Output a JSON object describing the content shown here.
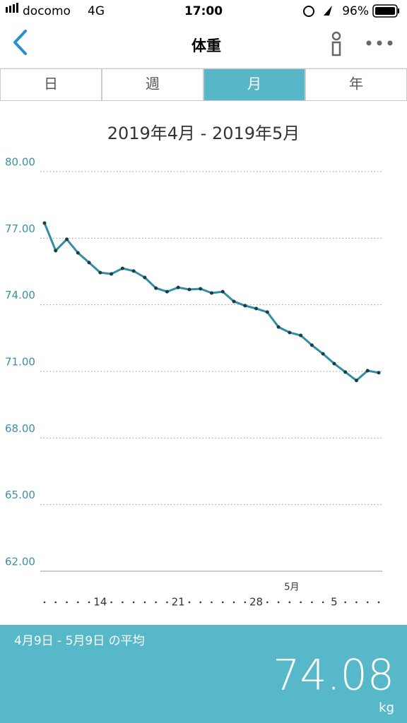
{
  "status_bar": {
    "carrier": "docomo",
    "network": "4G",
    "time": "17:00",
    "battery": "96%"
  },
  "nav": {
    "title": "体重"
  },
  "tabs": [
    "日",
    "週",
    "月",
    "年"
  ],
  "chart_data": {
    "type": "line",
    "title": "2019年4月 - 2019年5月",
    "categories": [
      null,
      null,
      null,
      null,
      null,
      "14",
      null,
      null,
      null,
      null,
      null,
      null,
      "21",
      null,
      null,
      null,
      null,
      null,
      null,
      "28",
      null,
      null,
      null,
      null,
      null,
      null,
      "5",
      null,
      null,
      null,
      null
    ],
    "month_marker": "5月",
    "series": [
      {
        "name": "体重",
        "color": "#2f8ea3",
        "values": [
          77.68,
          76.44,
          76.95,
          76.34,
          75.9,
          75.45,
          75.39,
          75.64,
          75.52,
          75.23,
          74.75,
          74.59,
          74.78,
          74.69,
          74.72,
          74.53,
          74.59,
          74.15,
          73.96,
          73.83,
          73.67,
          73.0,
          72.75,
          72.62,
          72.18,
          71.79,
          71.35,
          70.97,
          70.59,
          71.03,
          70.94
        ]
      }
    ],
    "ylim": [
      62,
      80
    ],
    "yticks": [
      {
        "value": 62,
        "label": "62.00"
      },
      {
        "value": 65,
        "label": "65.00"
      },
      {
        "value": 68,
        "label": "68.00"
      },
      {
        "value": 71,
        "label": "71.00"
      },
      {
        "value": 74,
        "label": "74.00"
      },
      {
        "value": 77,
        "label": "77.00"
      },
      {
        "value": 80,
        "label": "80.00"
      }
    ],
    "grid": true
  },
  "summary": {
    "label": "4月9日 - 5月9日 の平均",
    "value": "74.08",
    "unit": "kg"
  }
}
